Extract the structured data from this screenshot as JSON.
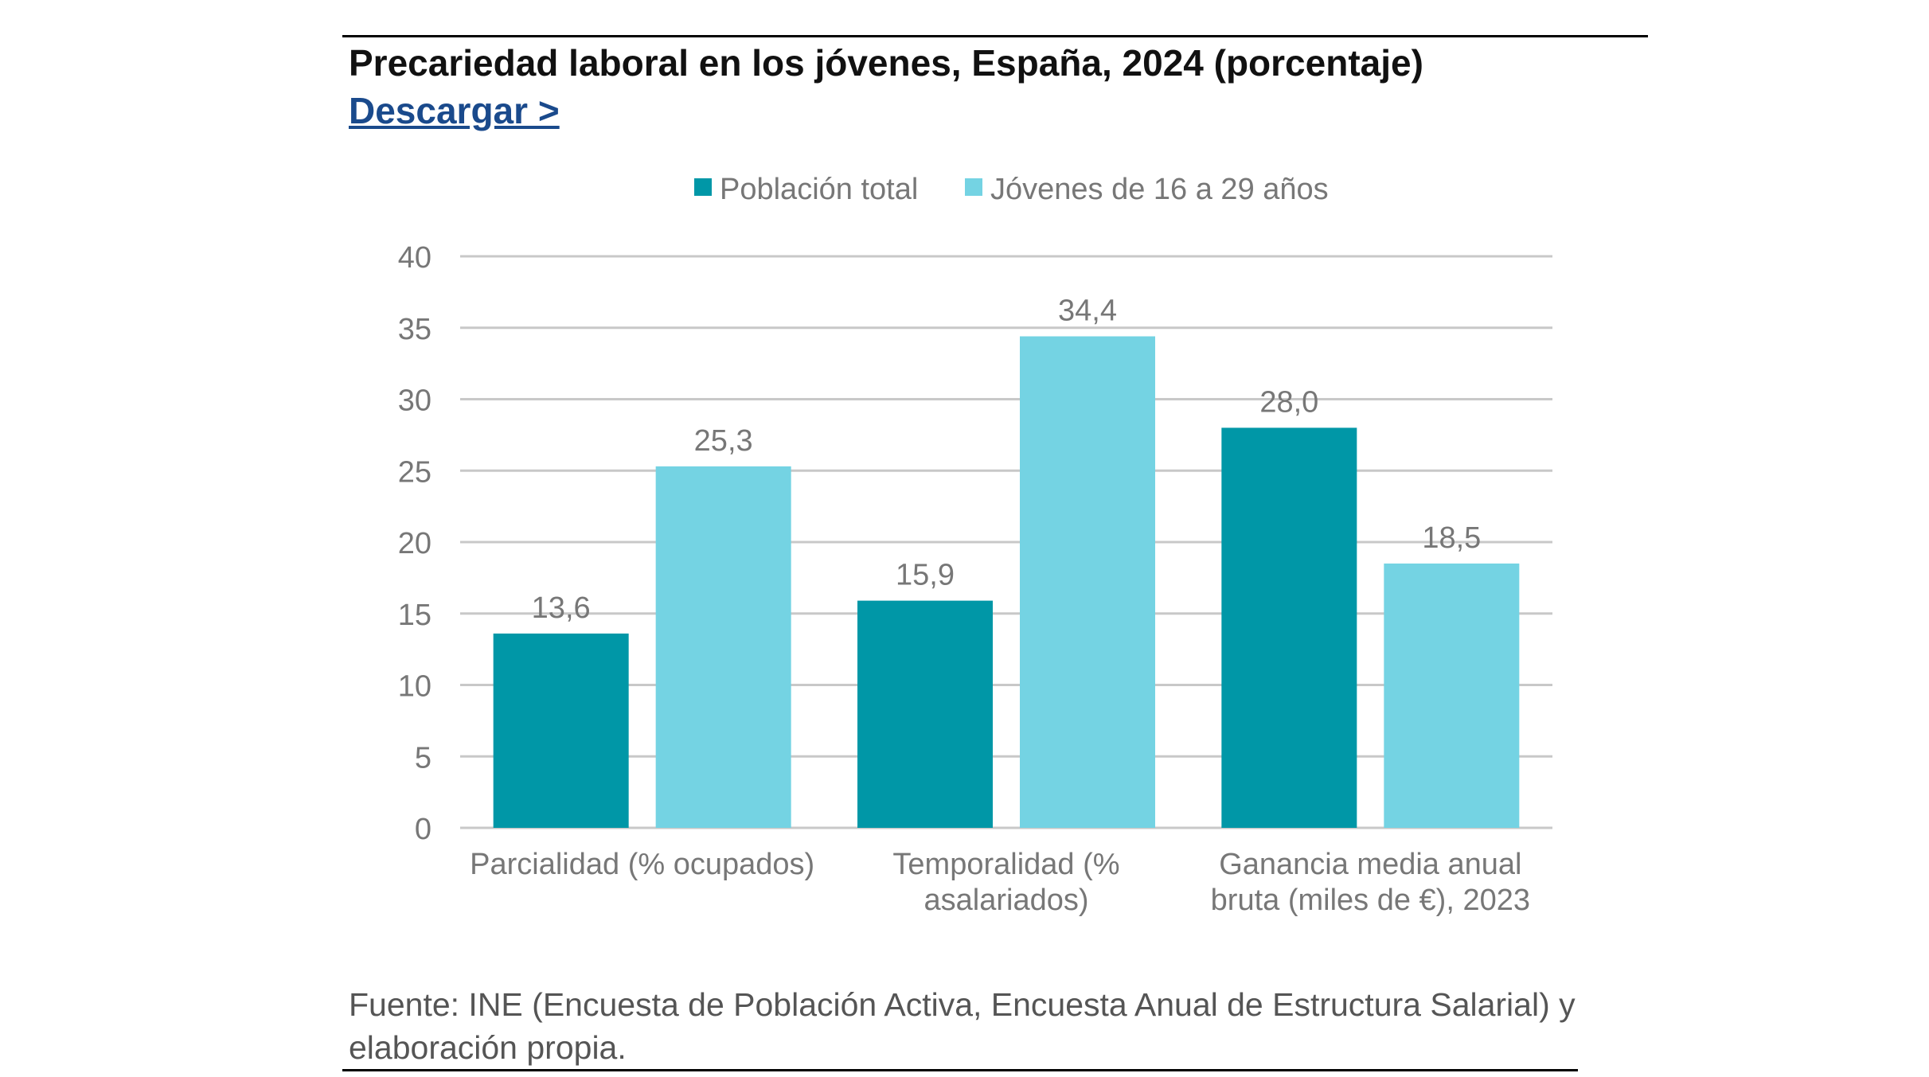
{
  "header": {
    "title": "Precariedad laboral en los jóvenes, España, 2024 (porcentaje)",
    "download_label": "Descargar  >"
  },
  "colors": {
    "series_total": "#0097A7",
    "series_young": "#74D3E3",
    "grid": "#c8c8c8",
    "text": "#777777",
    "link": "#1a4a8c"
  },
  "chart_data": {
    "type": "bar",
    "title": "Precariedad laboral en los jóvenes, España, 2024 (porcentaje)",
    "categories": [
      [
        "Parcialidad (% ocupados)"
      ],
      [
        "Temporalidad (%",
        "asalariados)"
      ],
      [
        "Ganancia media anual",
        "bruta (miles de €), 2023"
      ]
    ],
    "series": [
      {
        "name": "Población total",
        "values": [
          13.6,
          15.9,
          28.0
        ],
        "labels": [
          "13,6",
          "15,9",
          "28,0"
        ]
      },
      {
        "name": "Jóvenes de 16 a 29 años",
        "values": [
          25.3,
          34.4,
          18.5
        ],
        "labels": [
          "25,3",
          "34,4",
          "18,5"
        ]
      }
    ],
    "ylim": [
      0,
      40
    ],
    "yticks": [
      0,
      5,
      10,
      15,
      20,
      25,
      30,
      35,
      40
    ],
    "grid": true,
    "legend": "top-center",
    "xlabel": "",
    "ylabel": ""
  },
  "footer": {
    "source": "Fuente: INE (Encuesta de Población Activa, Encuesta Anual de Estructura Salarial) y elaboración propia."
  }
}
